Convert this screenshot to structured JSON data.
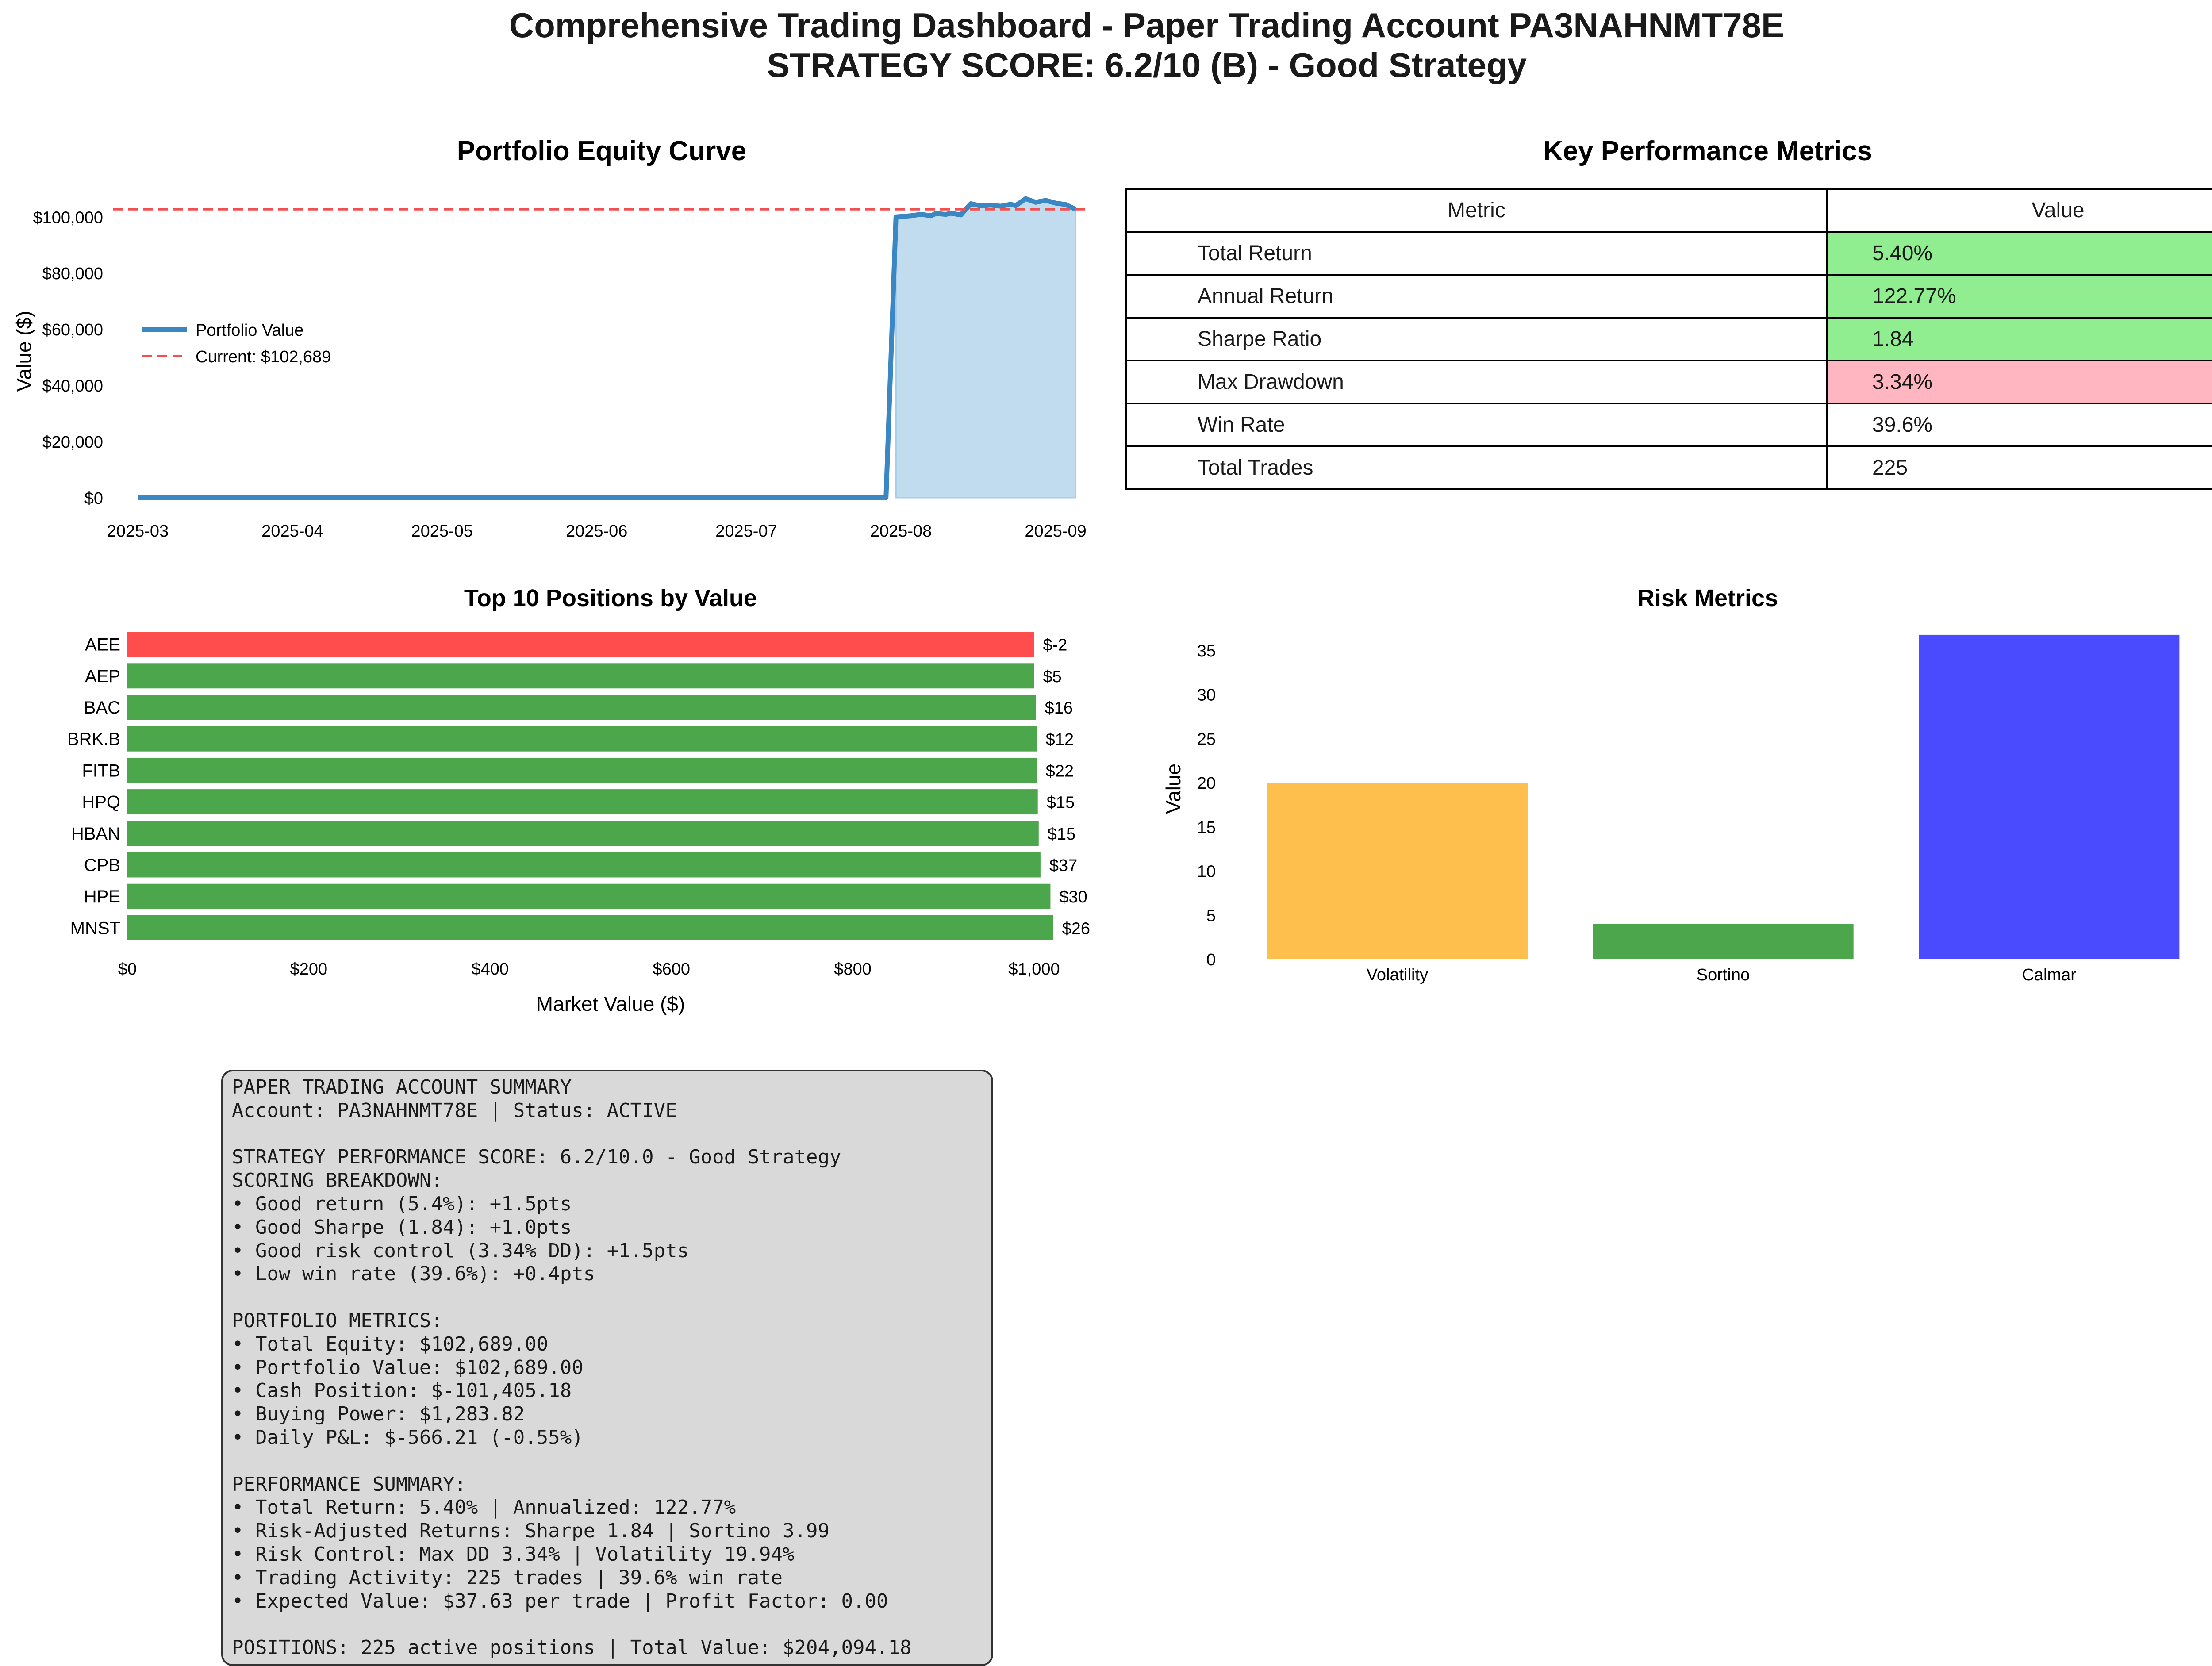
{
  "title": "Comprehensive Trading Dashboard - Paper Trading Account PA3NAHNMT78E",
  "subtitle": "STRATEGY SCORE: 6.2/10 (B) - Good Strategy",
  "colors": {
    "equity_line": "#3a87c4",
    "equity_fill": "#c0dcee",
    "current_line": "#f05050",
    "positive_bar": "#4ca64c",
    "negative_bar": "#ff4d4d",
    "good_cell": "#90ee90",
    "bad_cell": "#ffb6c1",
    "volatility_bar": "#ffbf4d",
    "sortino_bar": "#4ca64c",
    "calmar_bar": "#4a4aff",
    "summary_bg": "#d9d9d9"
  },
  "metrics_table": {
    "title": "Key Performance Metrics",
    "headers": [
      "Metric",
      "Value"
    ],
    "rows": [
      {
        "metric": "Total Return",
        "value": "5.40%",
        "status": "good"
      },
      {
        "metric": "Annual Return",
        "value": "122.77%",
        "status": "good"
      },
      {
        "metric": "Sharpe Ratio",
        "value": "1.84",
        "status": "good"
      },
      {
        "metric": "Max Drawdown",
        "value": "3.34%",
        "status": "bad"
      },
      {
        "metric": "Win Rate",
        "value": "39.6%",
        "status": "none"
      },
      {
        "metric": "Total Trades",
        "value": "225",
        "status": "none"
      }
    ]
  },
  "summary": {
    "lines": [
      "PAPER TRADING ACCOUNT SUMMARY",
      "Account: PA3NAHNMT78E | Status: ACTIVE",
      "",
      "STRATEGY PERFORMANCE SCORE: 6.2/10.0 - Good Strategy",
      "SCORING BREAKDOWN:",
      "• Good return (5.4%): +1.5pts",
      "• Good Sharpe (1.84): +1.0pts",
      "• Good risk control (3.34% DD): +1.5pts",
      "• Low win rate (39.6%): +0.4pts",
      "",
      "PORTFOLIO METRICS:",
      "• Total Equity: $102,689.00",
      "• Portfolio Value: $102,689.00",
      "• Cash Position: $-101,405.18",
      "• Buying Power: $1,283.82",
      "• Daily P&L: $-566.21 (-0.55%)",
      "",
      "PERFORMANCE SUMMARY:",
      "• Total Return: 5.40% | Annualized: 122.77%",
      "• Risk-Adjusted Returns: Sharpe 1.84 | Sortino 3.99",
      "• Risk Control: Max DD 3.34% | Volatility 19.94%",
      "• Trading Activity: 225 trades | 39.6% win rate",
      "• Expected Value: $37.63 per trade | Profit Factor: 0.00",
      "",
      "POSITIONS: 225 active positions | Total Value: $204,094.18"
    ]
  },
  "chart_data": [
    {
      "type": "line",
      "title": "Portfolio Equity Curve",
      "xlabel": "",
      "ylabel": "Value ($)",
      "x_ticks": [
        "2025-03",
        "2025-04",
        "2025-05",
        "2025-06",
        "2025-07",
        "2025-08",
        "2025-09"
      ],
      "y_ticks": [
        "$0",
        "$20,000",
        "$40,000",
        "$60,000",
        "$80,000",
        "$100,000"
      ],
      "ylim": [
        -5200,
        109500
      ],
      "xlim": [
        "2025-02-24",
        "2025-09-08"
      ],
      "legend_position": "center-left",
      "series": [
        {
          "name": "Portfolio Value",
          "style": "solid",
          "fill": true,
          "points": [
            {
              "x": "2025-03-01",
              "y": 0
            },
            {
              "x": "2025-07-29",
              "y": 0
            },
            {
              "x": "2025-07-31",
              "y": 100000
            },
            {
              "x": "2025-08-03",
              "y": 100400
            },
            {
              "x": "2025-08-05",
              "y": 100900
            },
            {
              "x": "2025-08-07",
              "y": 100400
            },
            {
              "x": "2025-08-08",
              "y": 101200
            },
            {
              "x": "2025-08-10",
              "y": 100900
            },
            {
              "x": "2025-08-11",
              "y": 101300
            },
            {
              "x": "2025-08-13",
              "y": 100700
            },
            {
              "x": "2025-08-15",
              "y": 104700
            },
            {
              "x": "2025-08-17",
              "y": 103900
            },
            {
              "x": "2025-08-19",
              "y": 104200
            },
            {
              "x": "2025-08-21",
              "y": 103800
            },
            {
              "x": "2025-08-23",
              "y": 104500
            },
            {
              "x": "2025-08-24",
              "y": 104000
            },
            {
              "x": "2025-08-26",
              "y": 106500
            },
            {
              "x": "2025-08-28",
              "y": 105200
            },
            {
              "x": "2025-08-30",
              "y": 105900
            },
            {
              "x": "2025-09-01",
              "y": 104900
            },
            {
              "x": "2025-09-03",
              "y": 104400
            },
            {
              "x": "2025-09-05",
              "y": 102689
            }
          ]
        },
        {
          "name": "Current: $102,689",
          "style": "dashed",
          "y": 102689
        }
      ]
    },
    {
      "type": "bar",
      "orientation": "horizontal",
      "title": "Top 10 Positions by Value",
      "xlabel": "Market Value ($)",
      "ylabel": "",
      "x_ticks": [
        "$0",
        "$200",
        "$400",
        "$600",
        "$800",
        "$1,000"
      ],
      "xlim": [
        0,
        1050
      ],
      "categories": [
        "AEE",
        "AEP",
        "BAC",
        "BRK.B",
        "FITB",
        "HPQ",
        "HBAN",
        "CPB",
        "HPE",
        "MNST"
      ],
      "values": [
        1000,
        1000,
        1002,
        1003,
        1003,
        1004,
        1005,
        1007,
        1018,
        1021
      ],
      "labels": [
        "$-2",
        "$5",
        "$16",
        "$12",
        "$22",
        "$15",
        "$15",
        "$37",
        "$30",
        "$26"
      ],
      "signs": [
        "negative",
        "positive",
        "positive",
        "positive",
        "positive",
        "positive",
        "positive",
        "positive",
        "positive",
        "positive"
      ]
    },
    {
      "type": "bar",
      "title": "Risk Metrics",
      "xlabel": "",
      "ylabel": "Value",
      "categories": [
        "Volatility",
        "Sortino",
        "Calmar"
      ],
      "values": [
        19.94,
        3.99,
        36.75
      ],
      "y_ticks": [
        "0",
        "5",
        "10",
        "15",
        "20",
        "25",
        "30",
        "35"
      ],
      "ylim": [
        0,
        38.6
      ],
      "grid": false
    }
  ]
}
